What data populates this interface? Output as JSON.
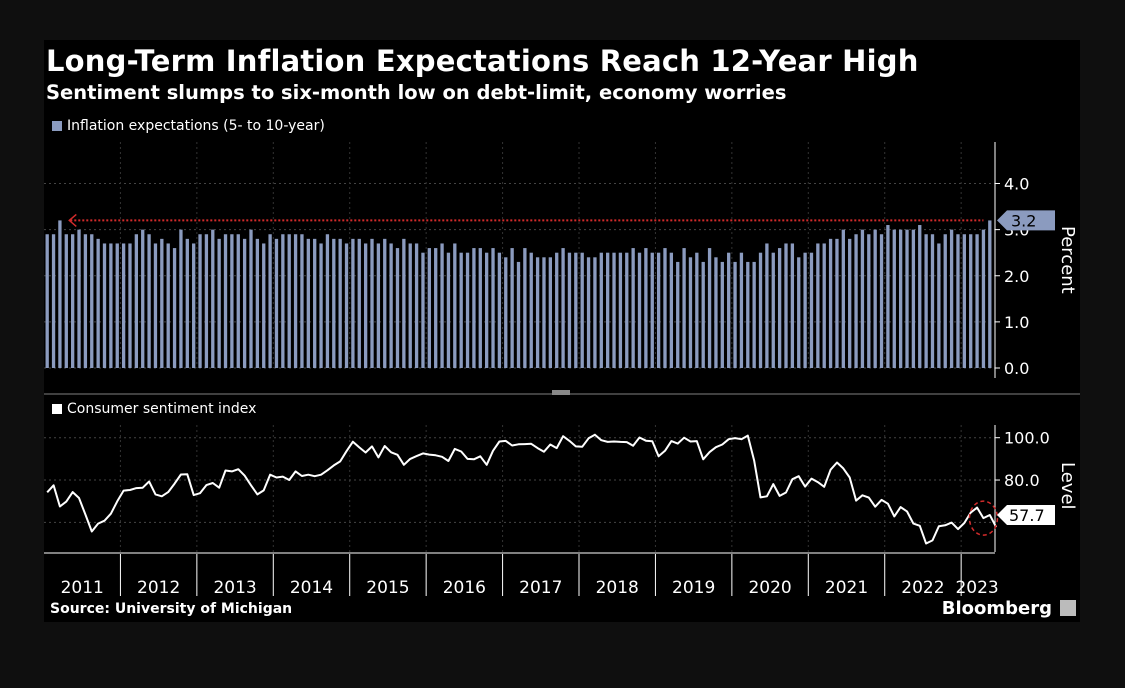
{
  "title": "Long-Term Inflation Expectations Reach 12-Year High",
  "subtitle": "Sentiment slumps to six-month low on debt-limit, economy worries",
  "source": "Source: University of Michigan",
  "brand": "Bloomberg",
  "colors": {
    "bars": "#8b9bbf",
    "line": "#ffffff",
    "reference": "#d22b2b",
    "background": "#000000"
  },
  "chart_data": [
    {
      "type": "bar",
      "series": [
        {
          "name": "Inflation expectations (5- to 10-year)"
        }
      ],
      "x_start": "2011-01",
      "x_unit": "month",
      "values": [
        2.9,
        2.9,
        3.2,
        2.9,
        2.9,
        3.0,
        2.9,
        2.9,
        2.8,
        2.7,
        2.7,
        2.7,
        2.7,
        2.7,
        2.9,
        3.0,
        2.9,
        2.7,
        2.8,
        2.7,
        2.6,
        3.0,
        2.8,
        2.7,
        2.9,
        2.9,
        3.0,
        2.8,
        2.9,
        2.9,
        2.9,
        2.8,
        3.0,
        2.8,
        2.7,
        2.9,
        2.8,
        2.9,
        2.9,
        2.9,
        2.9,
        2.8,
        2.8,
        2.7,
        2.9,
        2.8,
        2.8,
        2.7,
        2.8,
        2.8,
        2.7,
        2.8,
        2.7,
        2.8,
        2.7,
        2.6,
        2.8,
        2.7,
        2.7,
        2.5,
        2.6,
        2.6,
        2.7,
        2.5,
        2.7,
        2.5,
        2.5,
        2.6,
        2.6,
        2.5,
        2.6,
        2.5,
        2.4,
        2.6,
        2.3,
        2.6,
        2.5,
        2.4,
        2.4,
        2.4,
        2.5,
        2.6,
        2.5,
        2.5,
        2.5,
        2.4,
        2.4,
        2.5,
        2.5,
        2.5,
        2.5,
        2.5,
        2.6,
        2.5,
        2.6,
        2.5,
        2.5,
        2.6,
        2.5,
        2.3,
        2.6,
        2.4,
        2.5,
        2.3,
        2.6,
        2.4,
        2.3,
        2.5,
        2.3,
        2.5,
        2.3,
        2.3,
        2.5,
        2.7,
        2.5,
        2.6,
        2.7,
        2.7,
        2.4,
        2.5,
        2.5,
        2.7,
        2.7,
        2.8,
        2.8,
        3.0,
        2.8,
        2.9,
        3.0,
        2.9,
        3.0,
        2.9,
        3.1,
        3.0,
        3.0,
        3.0,
        3.0,
        3.1,
        2.9,
        2.9,
        2.7,
        2.9,
        3.0,
        2.9,
        2.9,
        2.9,
        2.9,
        3.0,
        3.2
      ],
      "ylabel": "Percent",
      "yticks": [
        "0.0",
        "1.0",
        "2.0",
        "3.0",
        "4.0"
      ],
      "ylim": [
        0,
        4.9
      ],
      "reference_value": 3.2,
      "latest_label": "3.2"
    },
    {
      "type": "line",
      "series": [
        {
          "name": "Consumer sentiment index"
        }
      ],
      "x_start": "2011-01",
      "x_unit": "month",
      "values": [
        74.2,
        77.5,
        67.5,
        69.8,
        74.3,
        71.5,
        63.7,
        55.7,
        59.4,
        60.8,
        64.1,
        69.9,
        75.0,
        75.3,
        76.2,
        76.4,
        79.3,
        73.2,
        72.3,
        74.3,
        78.3,
        82.6,
        82.7,
        72.9,
        73.8,
        77.6,
        78.6,
        76.4,
        84.5,
        84.1,
        85.1,
        82.1,
        77.5,
        73.2,
        75.1,
        82.5,
        81.2,
        81.6,
        80.0,
        84.1,
        81.9,
        82.5,
        81.8,
        82.5,
        84.6,
        86.9,
        88.8,
        93.6,
        98.1,
        95.4,
        93.0,
        95.9,
        90.7,
        96.1,
        93.1,
        91.9,
        87.2,
        90.0,
        91.3,
        92.6,
        92.0,
        91.7,
        91.0,
        89.0,
        94.7,
        93.5,
        90.0,
        89.8,
        91.2,
        87.2,
        93.8,
        98.2,
        98.5,
        96.3,
        96.9,
        97.0,
        97.1,
        95.1,
        93.4,
        96.8,
        95.1,
        100.7,
        98.5,
        95.9,
        95.7,
        99.7,
        101.4,
        98.8,
        98.0,
        98.2,
        98.0,
        97.9,
        96.2,
        100.1,
        98.6,
        98.3,
        91.2,
        93.8,
        98.4,
        97.2,
        100.0,
        98.2,
        98.4,
        89.8,
        93.2,
        95.5,
        96.8,
        99.3,
        99.8,
        99.3,
        101.0,
        89.1,
        71.8,
        72.3,
        78.1,
        72.5,
        74.1,
        80.4,
        81.8,
        76.9,
        80.7,
        79.0,
        76.8,
        84.9,
        88.3,
        85.5,
        81.2,
        70.3,
        72.8,
        71.7,
        67.4,
        70.6,
        68.8,
        62.8,
        67.2,
        65.2,
        59.4,
        58.4,
        50.0,
        51.5,
        58.2,
        58.6,
        59.9,
        56.8,
        59.7,
        64.6,
        67.0,
        62.0,
        63.5,
        57.7
      ],
      "ylabel": "Level",
      "yticks": [
        "80.0",
        "100.0"
      ],
      "ylim": [
        46,
        106
      ],
      "latest_label": "57.7"
    }
  ],
  "x_axis": {
    "year_labels": [
      "2011",
      "2012",
      "2013",
      "2014",
      "2015",
      "2016",
      "2017",
      "2018",
      "2019",
      "2020",
      "2021",
      "2022",
      "2023"
    ]
  }
}
